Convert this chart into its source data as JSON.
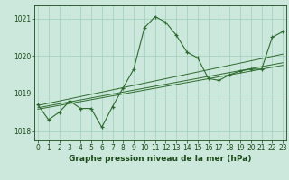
{
  "hours": [
    0,
    1,
    2,
    3,
    4,
    5,
    6,
    7,
    8,
    9,
    10,
    11,
    12,
    13,
    14,
    15,
    16,
    17,
    18,
    19,
    20,
    21,
    22,
    23
  ],
  "pressure": [
    1018.7,
    1018.3,
    1018.5,
    1018.8,
    1018.6,
    1018.6,
    1018.1,
    1018.65,
    1019.15,
    1019.65,
    1020.75,
    1021.05,
    1020.9,
    1020.55,
    1020.1,
    1019.95,
    1019.4,
    1019.35,
    1019.5,
    1019.6,
    1019.65,
    1019.65,
    1020.5,
    1020.65
  ],
  "trend_line1": [
    [
      0,
      1018.58
    ],
    [
      23,
      1019.75
    ]
  ],
  "trend_line2": [
    [
      0,
      1018.62
    ],
    [
      23,
      1019.82
    ]
  ],
  "trend_line3": [
    [
      0,
      1018.68
    ],
    [
      23,
      1020.05
    ]
  ],
  "ylim": [
    1017.75,
    1021.35
  ],
  "yticks": [
    1018,
    1019,
    1020,
    1021
  ],
  "xlim": [
    -0.3,
    23.3
  ],
  "xticks": [
    0,
    1,
    2,
    3,
    4,
    5,
    6,
    7,
    8,
    9,
    10,
    11,
    12,
    13,
    14,
    15,
    16,
    17,
    18,
    19,
    20,
    21,
    22,
    23
  ],
  "line_color": "#2d6a2d",
  "bg_color": "#cce8dc",
  "grid_color": "#9ecfbb",
  "xlabel": "Graphe pression niveau de la mer (hPa)",
  "xlabel_color": "#1a4a1a",
  "tick_color": "#1a4a1a",
  "label_fontsize": 5.5,
  "xlabel_fontsize": 6.5
}
